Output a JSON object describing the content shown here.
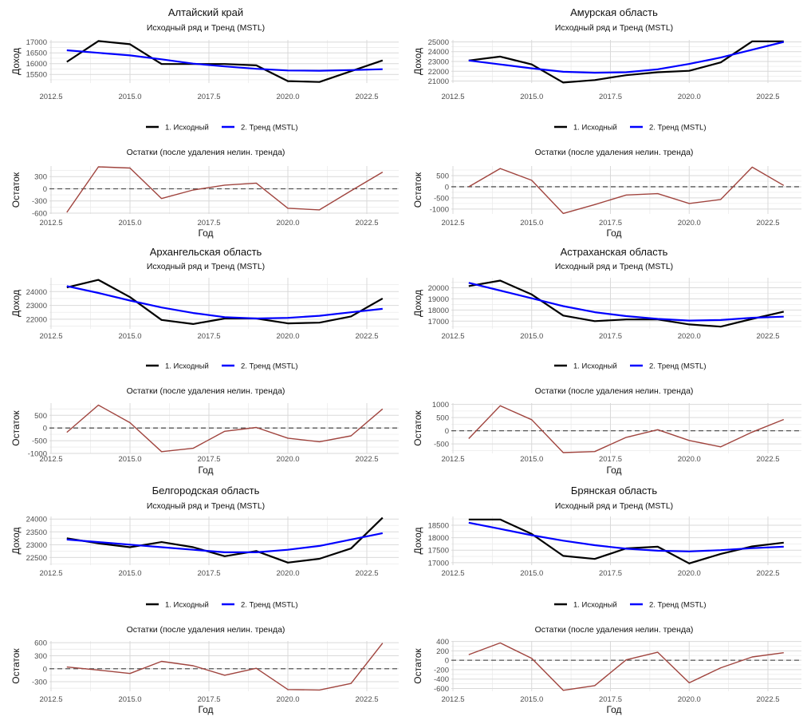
{
  "colors": {
    "original": "#000000",
    "trend": "#0000ff",
    "residual": "#a0443e",
    "zero_line": "#555555",
    "grid_major": "#d9d9d9",
    "grid_minor": "#ececec"
  },
  "labels": {
    "top_subtitle": "Исходный ряд и Тренд (MSTL)",
    "resid_title": "Остатки (после удаления нелин. тренда)",
    "ylabel_top": "Доход",
    "ylabel_resid": "Остаток",
    "xlabel": "Год",
    "legend_original": "1. Исходный",
    "legend_trend": "2. Тренд (MSTL)"
  },
  "chart_data": [
    {
      "type": "line",
      "region": "Алтайский край",
      "x": [
        2013,
        2014,
        2015,
        2016,
        2017,
        2018,
        2019,
        2020,
        2021,
        2022,
        2023
      ],
      "xlim": [
        2012.5,
        2023.5
      ],
      "xticks": [
        "2012.5",
        "2015.0",
        "2017.5",
        "2020.0",
        "2022.5"
      ],
      "top": {
        "title": "Алтайский край",
        "subtitle": "Исходный ряд и Тренд (MSTL)",
        "ylabel": "Доход",
        "ylim": [
          15100,
          17100
        ],
        "yticks": [
          15500,
          16000,
          16500,
          17000
        ],
        "series": [
          {
            "name": "1. Исходный",
            "values": [
              16080,
              17050,
              16900,
              15980,
              15980,
              15980,
              15920,
              15190,
              15150,
              15650,
              16150
            ]
          },
          {
            "name": "2. Тренд (MSTL)",
            "values": [
              16620,
              16500,
              16380,
              16200,
              16000,
              15870,
              15760,
              15680,
              15670,
              15700,
              15740
            ]
          }
        ]
      },
      "residual": {
        "title": "Остатки (после удаления нелин. тренда)",
        "ylabel": "Остаток",
        "xlabel": "Год",
        "ylim": [
          -620,
          560
        ],
        "yticks": [
          -600,
          -300,
          0,
          300
        ],
        "values": [
          -580,
          540,
          510,
          -240,
          -30,
          90,
          140,
          -480,
          -520,
          -50,
          410
        ]
      }
    },
    {
      "type": "line",
      "region": "Амурская область",
      "x": [
        2013,
        2014,
        2015,
        2016,
        2017,
        2018,
        2019,
        2020,
        2021,
        2022,
        2023
      ],
      "xlim": [
        2012.5,
        2023.5
      ],
      "xticks": [
        "2012.5",
        "2015.0",
        "2017.5",
        "2020.0",
        "2022.5"
      ],
      "top": {
        "title": "Амурская область",
        "subtitle": "Исходный ряд и Тренд (MSTL)",
        "ylabel": "Доход",
        "ylim": [
          20800,
          25200
        ],
        "yticks": [
          21000,
          22000,
          23000,
          24000,
          25000
        ],
        "series": [
          {
            "name": "1. Исходный",
            "values": [
              23100,
              23500,
              22700,
              20850,
              21100,
              21600,
              21900,
              22050,
              22900,
              25050,
              25050
            ]
          },
          {
            "name": "2. Тренд (MSTL)",
            "values": [
              23100,
              22700,
              22300,
              21950,
              21850,
              21900,
              22200,
              22750,
              23400,
              24200,
              25000
            ]
          }
        ]
      },
      "residual": {
        "title": "Остатки (после удаления нелин. тренда)",
        "ylabel": "Остаток",
        "xlabel": "Год",
        "ylim": [
          -1220,
          930
        ],
        "yticks": [
          -1000,
          -500,
          0,
          500
        ],
        "values": [
          0,
          820,
          290,
          -1200,
          -800,
          -370,
          -310,
          -750,
          -570,
          880,
          60
        ]
      }
    },
    {
      "type": "line",
      "region": "Архангельская область",
      "x": [
        2013,
        2014,
        2015,
        2016,
        2017,
        2018,
        2019,
        2020,
        2021,
        2022,
        2023
      ],
      "xlim": [
        2012.5,
        2023.5
      ],
      "xticks": [
        "2012.5",
        "2015.0",
        "2017.5",
        "2020.0",
        "2022.5"
      ],
      "top": {
        "title": "Архангельская область",
        "subtitle": "Исходный ряд и Тренд (MSTL)",
        "ylabel": "Доход",
        "ylim": [
          21300,
          25000
        ],
        "yticks": [
          22000,
          23000,
          24000
        ],
        "series": [
          {
            "name": "1. Исходный",
            "values": [
              24300,
              24850,
              23600,
              21950,
              21650,
              22050,
              22050,
              21700,
              21750,
              22200,
              23500
            ]
          },
          {
            "name": "2. Тренд (MSTL)",
            "values": [
              24400,
              23900,
              23350,
              22850,
              22450,
              22150,
              22050,
              22100,
              22250,
              22500,
              22750
            ]
          }
        ]
      },
      "residual": {
        "title": "Остатки (после удаления нелин. тренда)",
        "ylabel": "Остаток",
        "xlabel": "Год",
        "ylim": [
          -1000,
          980
        ],
        "yticks": [
          -1000,
          -500,
          0,
          500
        ],
        "values": [
          -170,
          900,
          210,
          -930,
          -800,
          -130,
          20,
          -400,
          -540,
          -310,
          750
        ]
      }
    },
    {
      "type": "line",
      "region": "Астраханская область",
      "x": [
        2013,
        2014,
        2015,
        2016,
        2017,
        2018,
        2019,
        2020,
        2021,
        2022,
        2023
      ],
      "xlim": [
        2012.5,
        2023.5
      ],
      "xticks": [
        "2012.5",
        "2015.0",
        "2017.5",
        "2020.0",
        "2022.5"
      ],
      "top": {
        "title": "Астраханская область",
        "subtitle": "Исходный ряд и Тренд (MSTL)",
        "ylabel": "Доход",
        "ylim": [
          16300,
          20900
        ],
        "yticks": [
          17000,
          18000,
          19000,
          20000
        ],
        "series": [
          {
            "name": "1. Исходный",
            "values": [
              20150,
              20650,
              19400,
              17500,
              17000,
              17150,
              17150,
              16700,
              16500,
              17200,
              17850
            ]
          },
          {
            "name": "2. Тренд (MSTL)",
            "values": [
              20450,
              19750,
              19050,
              18350,
              17800,
              17450,
              17200,
              17050,
              17100,
              17300,
              17400
            ]
          }
        ]
      },
      "residual": {
        "title": "Остатки (после удаления нелин. тренда)",
        "ylabel": "Остаток",
        "xlabel": "Год",
        "ylim": [
          -860,
          1050
        ],
        "yticks": [
          -500,
          0,
          500,
          1000
        ],
        "values": [
          -300,
          950,
          420,
          -830,
          -790,
          -250,
          40,
          -370,
          -610,
          -50,
          430
        ]
      }
    },
    {
      "type": "line",
      "region": "Белгородская область",
      "x": [
        2013,
        2014,
        2015,
        2016,
        2017,
        2018,
        2019,
        2020,
        2021,
        2022,
        2023
      ],
      "xlim": [
        2012.5,
        2023.5
      ],
      "xticks": [
        "2012.5",
        "2015.0",
        "2017.5",
        "2020.0",
        "2022.5"
      ],
      "top": {
        "title": "Белгородская область",
        "subtitle": "Исходный ряд и Тренд (MSTL)",
        "ylabel": "Доход",
        "ylim": [
          22200,
          24100
        ],
        "yticks": [
          22500,
          23000,
          23500,
          24000
        ],
        "series": [
          {
            "name": "1. Исходный",
            "values": [
              23250,
              23050,
              22900,
              23100,
              22900,
              22550,
              22750,
              22300,
              22450,
              22850,
              24050
            ]
          },
          {
            "name": "2. Тренд (MSTL)",
            "values": [
              23200,
              23100,
              23000,
              22900,
              22800,
              22700,
              22700,
              22800,
              22950,
              23200,
              23450
            ]
          }
        ]
      },
      "residual": {
        "title": "Остатки (после удаления нелин. тренда)",
        "ylabel": "Остаток",
        "xlabel": "Год",
        "ylim": [
          -520,
          640
        ],
        "yticks": [
          -300,
          0,
          300,
          600
        ],
        "values": [
          40,
          -30,
          -110,
          170,
          70,
          -150,
          10,
          -480,
          -490,
          -340,
          590
        ]
      }
    },
    {
      "type": "line",
      "region": "Брянская область",
      "x": [
        2013,
        2014,
        2015,
        2016,
        2017,
        2018,
        2019,
        2020,
        2021,
        2022,
        2023
      ],
      "xlim": [
        2012.5,
        2023.5
      ],
      "xticks": [
        "2012.5",
        "2015.0",
        "2017.5",
        "2020.0",
        "2022.5"
      ],
      "top": {
        "title": "Брянская область",
        "subtitle": "Исходный ряд и Тренд (MSTL)",
        "ylabel": "Доход",
        "ylim": [
          16900,
          18850
        ],
        "yticks": [
          17000,
          17500,
          18000,
          18500
        ],
        "series": [
          {
            "name": "1. Исходный",
            "values": [
              18730,
              18730,
              18150,
              17270,
              17150,
              17570,
              17640,
              16970,
              17350,
              17650,
              17800
            ]
          },
          {
            "name": "2. Тренд (MSTL)",
            "values": [
              18600,
              18350,
              18100,
              17880,
              17700,
              17560,
              17480,
              17450,
              17500,
              17580,
              17640
            ]
          }
        ]
      },
      "residual": {
        "title": "Остатки (после удаления нелин. тренда)",
        "ylabel": "Остаток",
        "xlabel": "Год",
        "ylim": [
          -660,
          410
        ],
        "yticks": [
          -600,
          -400,
          -200,
          0,
          200,
          400
        ],
        "values": [
          120,
          370,
          40,
          -640,
          -540,
          10,
          170,
          -480,
          -160,
          70,
          160
        ]
      }
    }
  ]
}
